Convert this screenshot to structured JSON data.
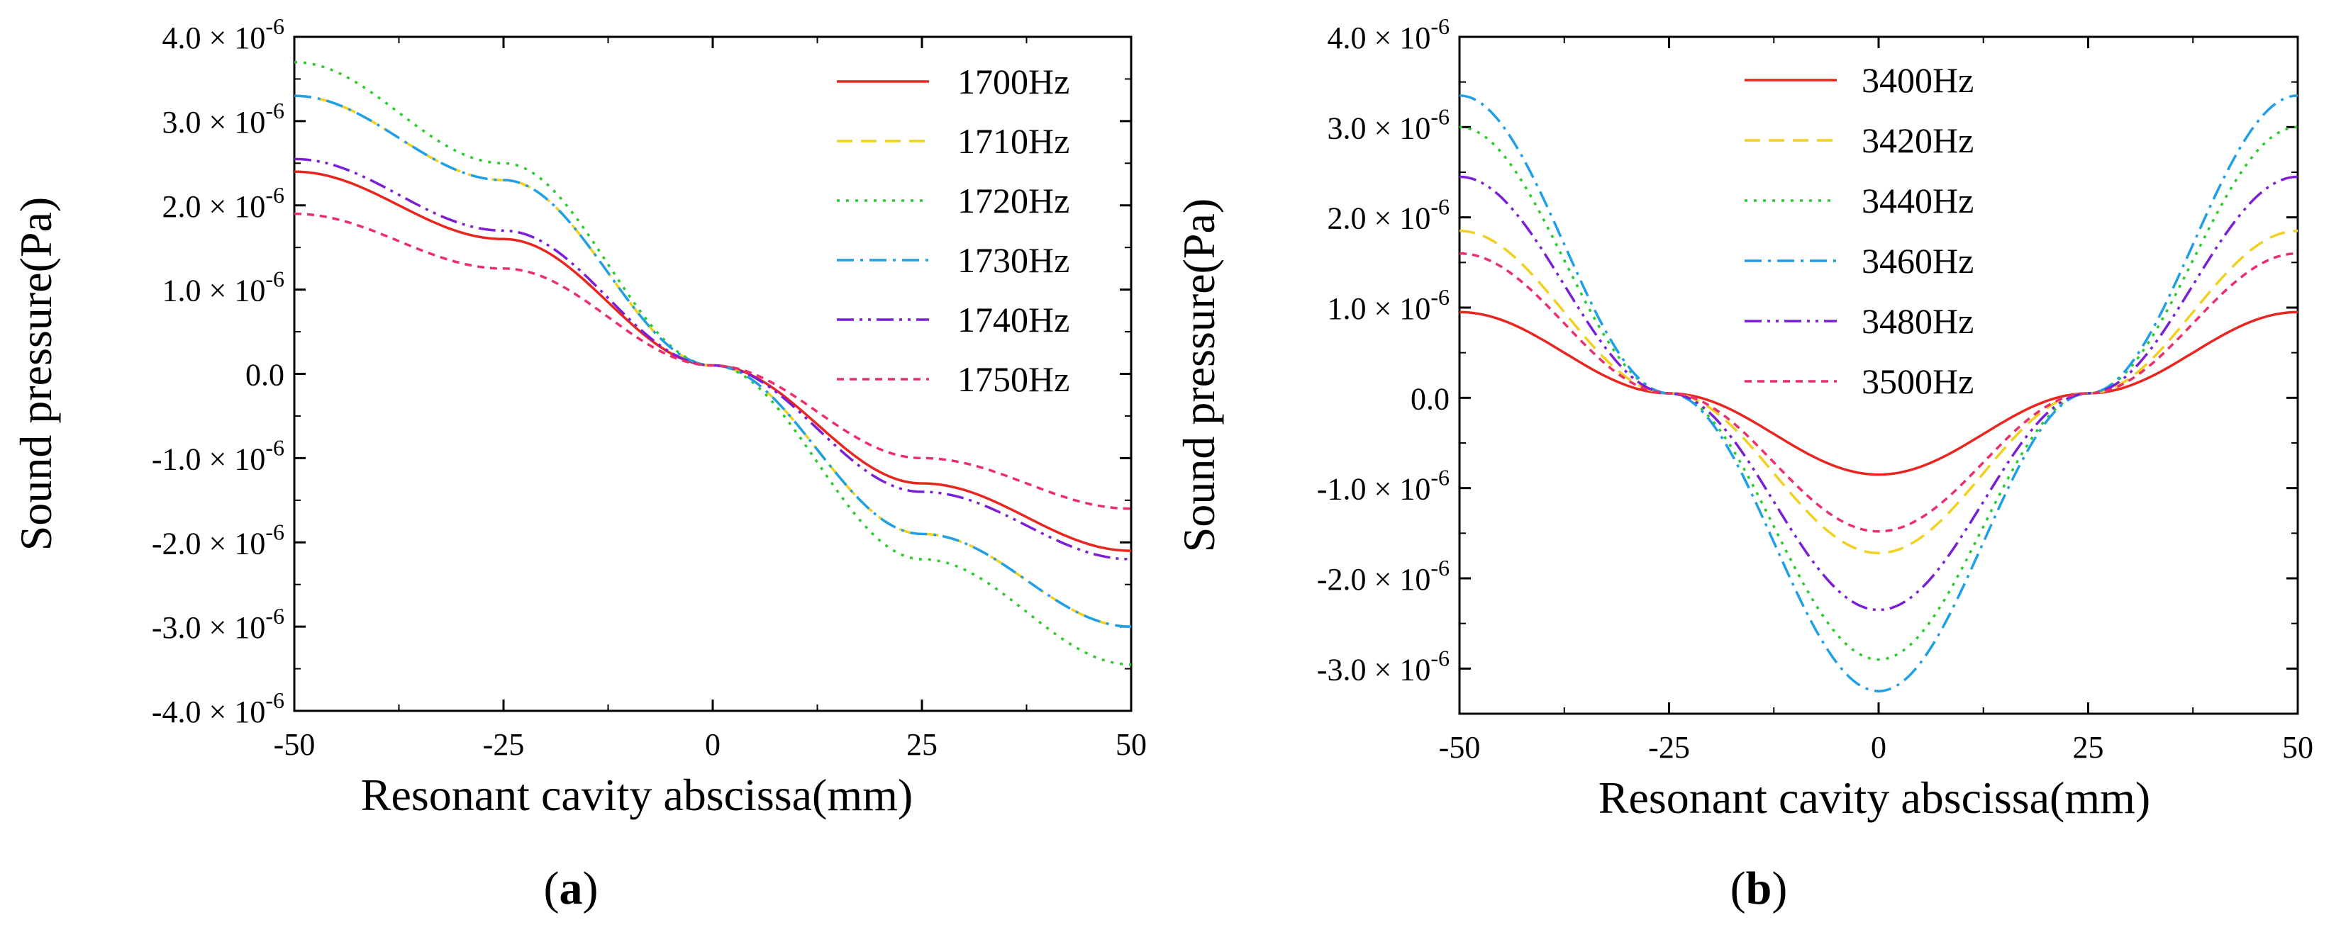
{
  "chart_data": [
    {
      "type": "line",
      "panel_label": "a",
      "xlabel": "Resonant cavity abscissa(mm)",
      "ylabel": "Sound pressure(Pa)",
      "xlim": [
        -50,
        50
      ],
      "ylim": [
        -4e-06,
        4e-06
      ],
      "xticks": [
        -50,
        -25,
        0,
        25,
        50
      ],
      "xtick_labels": [
        "-50",
        "-25",
        "0",
        "25",
        "50"
      ],
      "yticks": [
        -4e-06,
        -3e-06,
        -2e-06,
        -1e-06,
        0,
        1e-06,
        2e-06,
        3e-06,
        4e-06
      ],
      "ytick_labels": [
        "-4.0 × 10-6",
        "-3.0 × 10-6",
        "-2.0 × 10-6",
        "-1.0 × 10-6",
        "0.0",
        "1.0 × 10-6",
        "2.0 × 10-6",
        "3.0 × 10-6",
        "4.0 × 10-6"
      ],
      "grid": false,
      "legend_position": "top-right",
      "x": [
        -50,
        -25,
        0,
        25,
        50
      ],
      "series": [
        {
          "name": "1700Hz",
          "color": "#e8261f",
          "dash": "solid",
          "values": [
            2.4e-06,
            1.6e-06,
            1e-07,
            -1.3e-06,
            -2.1e-06
          ]
        },
        {
          "name": "1710Hz",
          "color": "#f2d020",
          "dash": "dashed",
          "values": [
            3.3e-06,
            2.3e-06,
            1e-07,
            -1.9e-06,
            -3e-06
          ]
        },
        {
          "name": "1720Hz",
          "color": "#28cc28",
          "dash": "dotted",
          "values": [
            3.7e-06,
            2.5e-06,
            1e-07,
            -2.2e-06,
            -3.45e-06
          ]
        },
        {
          "name": "1730Hz",
          "color": "#1e9fe6",
          "dash": "dashdot",
          "values": [
            3.3e-06,
            2.3e-06,
            1e-07,
            -1.9e-06,
            -3e-06
          ]
        },
        {
          "name": "1740Hz",
          "color": "#7a1fd6",
          "dash": "dashdotdot",
          "values": [
            2.55e-06,
            1.7e-06,
            1e-07,
            -1.4e-06,
            -2.2e-06
          ]
        },
        {
          "name": "1750Hz",
          "color": "#ec2e6a",
          "dash": "shortdash",
          "values": [
            1.9e-06,
            1.25e-06,
            1e-07,
            -1e-06,
            -1.6e-06
          ]
        }
      ]
    },
    {
      "type": "line",
      "panel_label": "b",
      "xlabel": "Resonant cavity abscissa(mm)",
      "ylabel": "Sound pressure(Pa)",
      "xlim": [
        -50,
        50
      ],
      "ylim": [
        -3.5e-06,
        4e-06
      ],
      "xticks": [
        -50,
        -25,
        0,
        25,
        50
      ],
      "xtick_labels": [
        "-50",
        "-25",
        "0",
        "25",
        "50"
      ],
      "yticks": [
        -3e-06,
        -2e-06,
        -1e-06,
        0,
        1e-06,
        2e-06,
        3e-06,
        4e-06
      ],
      "ytick_labels": [
        "-3.0 × 10-6",
        "-2.0 × 10-6",
        "-1.0 × 10-6",
        "0.0",
        "1.0 × 10-6",
        "2.0 × 10-6",
        "3.0 × 10-6",
        "4.0 × 10-6"
      ],
      "grid": false,
      "legend_position": "top-center",
      "x": [
        -50,
        -25,
        0,
        25,
        50
      ],
      "series": [
        {
          "name": "3400Hz",
          "color": "#e8261f",
          "dash": "solid",
          "values": [
            9.5e-07,
            5e-08,
            -8.5e-07,
            5e-08,
            9.5e-07
          ]
        },
        {
          "name": "3420Hz",
          "color": "#f2d020",
          "dash": "dashed",
          "values": [
            1.85e-06,
            5e-08,
            -1.72e-06,
            5e-08,
            1.85e-06
          ]
        },
        {
          "name": "3440Hz",
          "color": "#28cc28",
          "dash": "dotted",
          "values": [
            3e-06,
            5e-08,
            -2.9e-06,
            5e-08,
            3e-06
          ]
        },
        {
          "name": "3460Hz",
          "color": "#1e9fe6",
          "dash": "dashdot",
          "values": [
            3.35e-06,
            5e-08,
            -3.25e-06,
            5e-08,
            3.35e-06
          ]
        },
        {
          "name": "3480Hz",
          "color": "#7a1fd6",
          "dash": "dashdotdot",
          "values": [
            2.45e-06,
            5e-08,
            -2.35e-06,
            5e-08,
            2.45e-06
          ]
        },
        {
          "name": "3500Hz",
          "color": "#ec2e6a",
          "dash": "shortdash",
          "values": [
            1.6e-06,
            5e-08,
            -1.48e-06,
            5e-08,
            1.6e-06
          ]
        }
      ]
    }
  ]
}
